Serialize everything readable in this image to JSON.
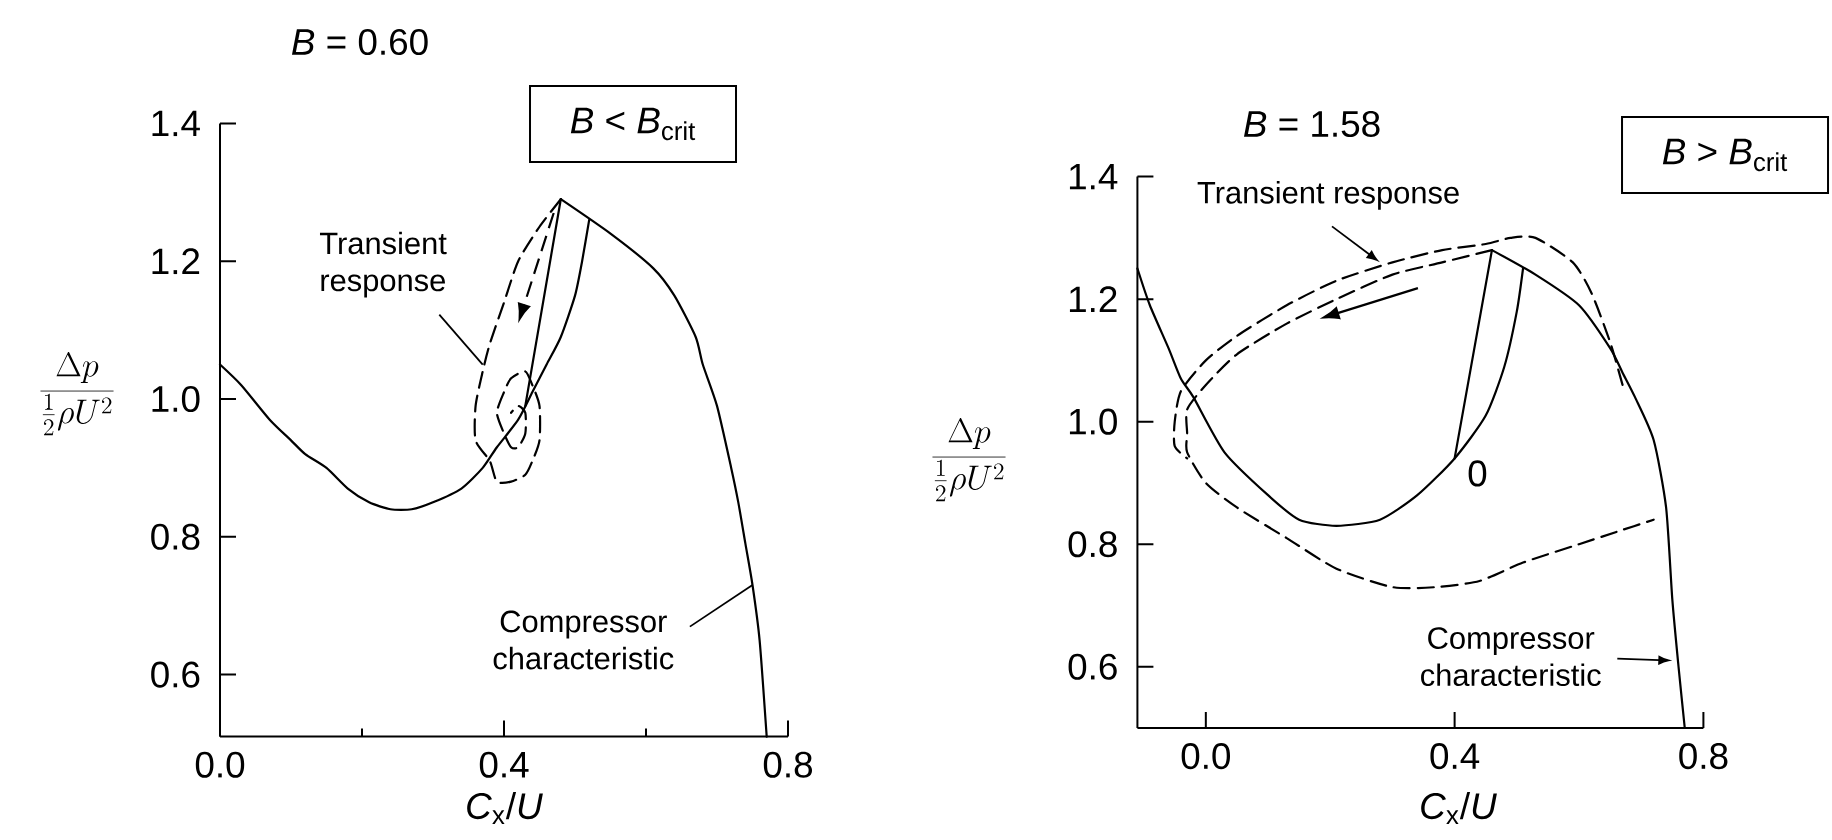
{
  "chart_data": [
    {
      "type": "line",
      "title": "*B* = 0.60",
      "xlabel": "*C*$_{x}$/*U*",
      "ylabel": "\\frac{\\Delta p}{\\frac{1}{2}\\rho U^{2}}",
      "xlim": [
        0,
        0.8
      ],
      "ylim": [
        0.51,
        1.4
      ],
      "xticks": [
        {
          "value": 0,
          "label": "0.0"
        },
        {
          "value": 0.2,
          "label": null
        },
        {
          "value": 0.4,
          "label": "0.4"
        },
        {
          "value": 0.6,
          "label": null
        },
        {
          "value": 0.8,
          "label": "0.8"
        }
      ],
      "yticks": [
        0.6,
        0.8,
        {
          "value": 1,
          "label": "1.0"
        },
        1.2,
        1.4
      ],
      "series": [
        {
          "color": "#000000",
          "line_style": "solid",
          "x": [
            0,
            0.03,
            0.07,
            0.1,
            0.12,
            0.15,
            0.18,
            0.21,
            0.24,
            0.27,
            0.3,
            0.34,
            0.37,
            0.39,
            0.42,
            0.44,
            0.46,
            0.48,
            0.5,
            0.51,
            0.52
          ],
          "values": [
            1.05,
            1.02,
            0.97,
            0.94,
            0.92,
            0.9,
            0.87,
            0.85,
            0.84,
            0.84,
            0.85,
            0.87,
            0.9,
            0.93,
            0.97,
            1.01,
            1.05,
            1.09,
            1.15,
            1.2,
            1.26
          ]
        },
        {
          "color": "#000000",
          "line_style": "solid",
          "x": [
            0.43,
            0.48
          ],
          "values": [
            0.99,
            1.29
          ]
        },
        {
          "color": "#000000",
          "line_style": "solid",
          "x": [
            0.48,
            0.55,
            0.61,
            0.64,
            0.67,
            0.68,
            0.7,
            0.72,
            0.73,
            0.74,
            0.75,
            0.76,
            0.77
          ],
          "values": [
            1.29,
            1.24,
            1.19,
            1.15,
            1.09,
            1.05,
            0.99,
            0.9,
            0.85,
            0.79,
            0.73,
            0.65,
            0.51
          ]
        },
        {
          "color": "#000000",
          "line_style": "dashed",
          "x": [
            0.48,
            0.45,
            0.42,
            0.4,
            0.38,
            0.37,
            0.36,
            0.36,
            0.38,
            0.39,
            0.41,
            0.43,
            0.44,
            0.45,
            0.45,
            0.44,
            0.43,
            0.41,
            0.4,
            0.39,
            0.4,
            0.41,
            0.42,
            0.43,
            0.43,
            0.42,
            0.41
          ],
          "values": [
            1.29,
            1.25,
            1.2,
            1.14,
            1.08,
            1.04,
            0.99,
            0.94,
            0.91,
            0.88,
            0.88,
            0.89,
            0.91,
            0.94,
            0.99,
            1.02,
            1.04,
            1.03,
            1.01,
            0.98,
            0.95,
            0.93,
            0.93,
            0.95,
            0.98,
            0.99,
            0.98
          ]
        }
      ],
      "annotations": [
        "*B* < *B*$_{crit}$",
        {
          "text": "Transient response",
          "x": 0.37,
          "y": 1.05
        },
        {
          "text": "Compressor characteristic",
          "x": 0.75,
          "y": 0.73
        }
      ]
    },
    {
      "type": "line",
      "title": "*B* = 1.58",
      "xlabel": "*C*$_{x}$/*U*",
      "ylabel": "\\frac{\\Delta p}{\\frac{1}{2}\\rho U^{2}}",
      "xlim": [
        -0.11,
        0.8
      ],
      "ylim": [
        0.5,
        1.4
      ],
      "xticks": [
        {
          "value": 0,
          "label": "0.0"
        },
        {
          "value": 0.4,
          "label": "0.4"
        },
        {
          "value": 0.8,
          "label": "0.8"
        }
      ],
      "yticks": [
        0.6,
        0.8,
        {
          "value": 1,
          "label": "1.0"
        },
        1.2,
        1.4
      ],
      "series": [
        {
          "color": "#000000",
          "line_style": "solid",
          "x": [
            -0.11,
            -0.09,
            -0.06,
            -0.04,
            -0.02,
            0.03,
            0.1,
            0.15,
            0.21,
            0.28,
            0.34,
            0.4,
            0.45,
            0.48,
            0.5,
            0.51
          ],
          "values": [
            1.25,
            1.19,
            1.12,
            1.07,
            1.04,
            0.95,
            0.88,
            0.84,
            0.83,
            0.84,
            0.88,
            0.94,
            1.01,
            1.09,
            1.18,
            1.25
          ]
        },
        {
          "color": "#000000",
          "line_style": "solid",
          "x": [
            0.4,
            0.46
          ],
          "values": [
            0.94,
            1.28
          ]
        },
        {
          "color": "#000000",
          "line_style": "solid",
          "x": [
            0.46,
            0.53,
            0.6,
            0.65,
            0.67,
            0.69,
            0.72,
            0.74,
            0.75,
            0.76,
            0.77
          ],
          "values": [
            1.28,
            1.24,
            1.19,
            1.12,
            1.08,
            1.04,
            0.97,
            0.86,
            0.71,
            0.6,
            0.5
          ]
        },
        {
          "color": "#000000",
          "line_style": "dashed",
          "x": [
            0.46,
            0.38,
            0.3,
            0.21,
            0.13,
            0.05,
            0.0,
            -0.03,
            -0.03,
            -0.03,
            0.0,
            0.05,
            0.13,
            0.21,
            0.3,
            0.37,
            0.44,
            0.51,
            0.6,
            0.66,
            0.72
          ],
          "values": [
            1.28,
            1.26,
            1.24,
            1.2,
            1.16,
            1.11,
            1.06,
            1.02,
            0.98,
            0.95,
            0.9,
            0.86,
            0.81,
            0.76,
            0.73,
            0.73,
            0.74,
            0.77,
            0.8,
            0.82,
            0.84
          ]
        },
        {
          "color": "#000000",
          "line_style": "dashed",
          "x": [
            0.67,
            0.65,
            0.62,
            0.59,
            0.53,
            0.49,
            0.45,
            0.38,
            0.3,
            0.21,
            0.13,
            0.05,
            0.0,
            -0.04,
            -0.05,
            -0.05,
            -0.03
          ],
          "values": [
            1.06,
            1.13,
            1.21,
            1.26,
            1.3,
            1.3,
            1.29,
            1.28,
            1.26,
            1.23,
            1.19,
            1.14,
            1.1,
            1.05,
            1.0,
            0.96,
            0.94
          ]
        }
      ],
      "annotations": [
        "*B* > *B*$_{crit}$",
        {
          "text": "Transient response",
          "x": 0.28,
          "y": 1.26
        },
        {
          "text": "Compressor characteristic",
          "x": 0.75,
          "y": 0.61
        },
        {
          "text": "0",
          "x": 0.4,
          "y": 0.94
        }
      ]
    }
  ]
}
